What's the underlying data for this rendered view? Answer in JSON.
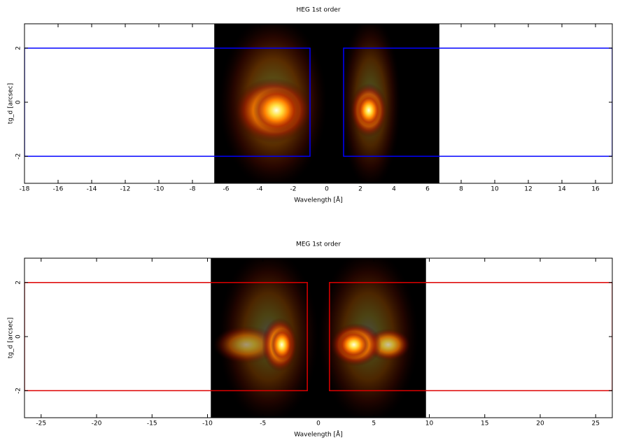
{
  "chart_data": [
    {
      "type": "heatmap",
      "title": "HEG 1st order",
      "xlabel": "Wavelength [Å]",
      "ylabel": "tg_d [arcsec]",
      "xlim": [
        -18,
        17
      ],
      "ylim": [
        -3,
        2.9
      ],
      "xticks": [
        -18,
        -16,
        -14,
        -12,
        -10,
        -8,
        -6,
        -4,
        -2,
        0,
        2,
        4,
        6,
        8,
        10,
        12,
        14,
        16
      ],
      "yticks": [
        -2,
        0,
        2
      ],
      "image": {
        "xlim": [
          -6.7,
          6.7
        ],
        "ylim": [
          -3,
          2.9
        ]
      },
      "sources": [
        {
          "x": -3.2,
          "y": 0,
          "sx": 3.2,
          "sy": 3.2,
          "intensity": 0.35
        },
        {
          "x": 2.6,
          "y": 0,
          "sx": 1.8,
          "sy": 3.2,
          "intensity": 0.3
        },
        {
          "x": -3.2,
          "y": -0.3,
          "sx": 2.3,
          "sy": 1.2,
          "intensity": 0.9
        },
        {
          "x": -3,
          "y": -0.3,
          "sx": 1.4,
          "sy": 0.8,
          "intensity": 1
        },
        {
          "x": 2.5,
          "y": -0.3,
          "sx": 1.1,
          "sy": 1.0,
          "intensity": 0.9
        },
        {
          "x": 2.5,
          "y": -0.3,
          "sx": 0.7,
          "sy": 0.6,
          "intensity": 1
        }
      ],
      "region_color": "#0000ff",
      "regions": [
        {
          "xlim": [
            -18,
            -1
          ],
          "ylim": [
            -2,
            2
          ]
        },
        {
          "xlim": [
            1,
            17
          ],
          "ylim": [
            -2,
            2
          ]
        }
      ]
    },
    {
      "type": "heatmap",
      "title": "MEG 1st order",
      "xlabel": "Wavelength [Å]",
      "ylabel": "tg_d [arcsec]",
      "xlim": [
        -26.5,
        26.5
      ],
      "ylim": [
        -3,
        2.9
      ],
      "xticks": [
        -25,
        -20,
        -15,
        -10,
        -5,
        0,
        5,
        10,
        15,
        20,
        25
      ],
      "yticks": [
        -2,
        0,
        2
      ],
      "image": {
        "xlim": [
          -9.7,
          9.7
        ],
        "ylim": [
          -3,
          2.9
        ]
      },
      "sources": [
        {
          "x": -4.5,
          "y": 0,
          "sx": 4.5,
          "sy": 3.2,
          "intensity": 0.3
        },
        {
          "x": 4.5,
          "y": 0,
          "sx": 4.5,
          "sy": 3.2,
          "intensity": 0.3
        },
        {
          "x": -6.5,
          "y": -0.3,
          "sx": 3.0,
          "sy": 0.7,
          "intensity": 0.5
        },
        {
          "x": -3.5,
          "y": -0.3,
          "sx": 1.6,
          "sy": 1.0,
          "intensity": 0.9
        },
        {
          "x": -3.3,
          "y": -0.3,
          "sx": 1.0,
          "sy": 0.6,
          "intensity": 1
        },
        {
          "x": 6.3,
          "y": -0.3,
          "sx": 2.0,
          "sy": 0.6,
          "intensity": 0.7
        },
        {
          "x": 3.4,
          "y": -0.3,
          "sx": 2.3,
          "sy": 0.8,
          "intensity": 0.95
        },
        {
          "x": 3.2,
          "y": -0.3,
          "sx": 1.4,
          "sy": 0.5,
          "intensity": 1
        }
      ],
      "region_color": "#dd0000",
      "regions": [
        {
          "xlim": [
            -26.5,
            -1
          ],
          "ylim": [
            -2,
            2
          ]
        },
        {
          "xlim": [
            1,
            26.5
          ],
          "ylim": [
            -2,
            2
          ]
        }
      ]
    }
  ]
}
